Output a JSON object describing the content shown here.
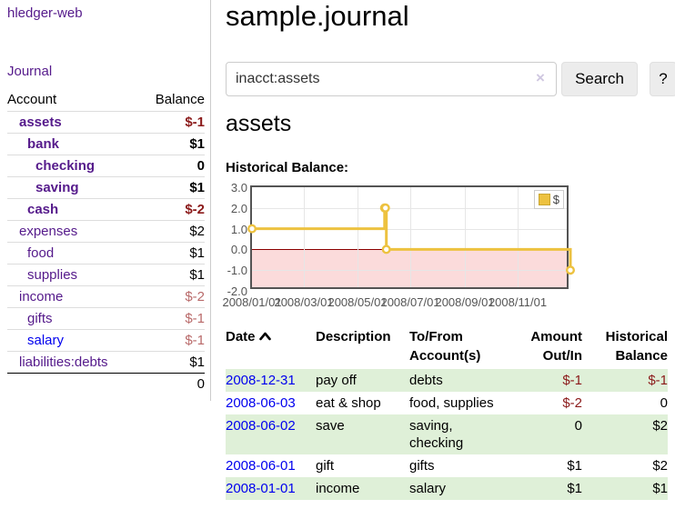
{
  "app": {
    "brand": "hledger-web",
    "nav_journal": "Journal"
  },
  "sidebar": {
    "header": {
      "account": "Account",
      "balance": "Balance"
    },
    "accounts": [
      {
        "name": "assets",
        "balance": "$-1"
      },
      {
        "name": "bank",
        "balance": "$1"
      },
      {
        "name": "checking",
        "balance": "0"
      },
      {
        "name": "saving",
        "balance": "$1"
      },
      {
        "name": "cash",
        "balance": "$-2"
      },
      {
        "name": "expenses",
        "balance": "$2"
      },
      {
        "name": "food",
        "balance": "$1"
      },
      {
        "name": "supplies",
        "balance": "$1"
      },
      {
        "name": "income",
        "balance": "$-2"
      },
      {
        "name": "gifts",
        "balance": "$-1"
      },
      {
        "name": "salary",
        "balance": "$-1"
      },
      {
        "name": "liabilities:debts",
        "balance": "$1"
      }
    ],
    "total": "0"
  },
  "main": {
    "title": "sample.journal",
    "search": {
      "value": "inacct:assets",
      "clear_icon": "×",
      "search_button": "Search",
      "help_button": "?"
    },
    "account_heading": "assets",
    "chart_label": "Historical Balance:"
  },
  "register": {
    "headers": {
      "date": "Date",
      "description": "Description",
      "accounts": "To/From Account(s)",
      "amount": "Amount Out/In",
      "balance": "Historical Balance"
    },
    "rows": [
      {
        "date": "2008-12-31",
        "description": "pay off",
        "accounts": "debts",
        "amount": "$-1",
        "balance": "$-1"
      },
      {
        "date": "2008-06-03",
        "description": "eat & shop",
        "accounts": "food, supplies",
        "amount": "$-2",
        "balance": "0"
      },
      {
        "date": "2008-06-02",
        "description": "save",
        "accounts": "saving, checking",
        "amount": "0",
        "balance": "$2"
      },
      {
        "date": "2008-06-01",
        "description": "gift",
        "accounts": "gifts",
        "amount": "$1",
        "balance": "$2"
      },
      {
        "date": "2008-01-01",
        "description": "income",
        "accounts": "salary",
        "amount": "$1",
        "balance": "$1"
      }
    ]
  },
  "chart_data": {
    "type": "line",
    "title": "Historical Balance",
    "step": true,
    "series": [
      {
        "name": "$",
        "color": "#edc240",
        "points": [
          [
            "2008-01-01",
            1
          ],
          [
            "2008-06-01",
            2
          ],
          [
            "2008-06-02",
            2
          ],
          [
            "2008-06-03",
            0
          ],
          [
            "2008-12-31",
            -1
          ]
        ]
      }
    ],
    "xlim": [
      "2008-01-01",
      "2008-12-31"
    ],
    "ylim": [
      -2,
      3
    ],
    "yticks": [
      "3.0",
      "2.0",
      "1.0",
      "0.0",
      "-1.0",
      "-2.0"
    ],
    "xticks": [
      "2008/01/01",
      "2008/03/01",
      "2008/05/01",
      "2008/07/01",
      "2008/09/01",
      "2008/11/01"
    ],
    "grid": true,
    "legend_label": "$",
    "legend_position": "top-right",
    "negative_region_fill": "#fbdbdb",
    "zero_line_color": "#8b0000"
  },
  "colors": {
    "link_visited": "#551a8b",
    "link": "#0000ee",
    "negative_strong": "#8b1a1a",
    "negative_soft": "#b96a6a",
    "stripe_green": "#dff0d8",
    "chart_line": "#edc240"
  }
}
